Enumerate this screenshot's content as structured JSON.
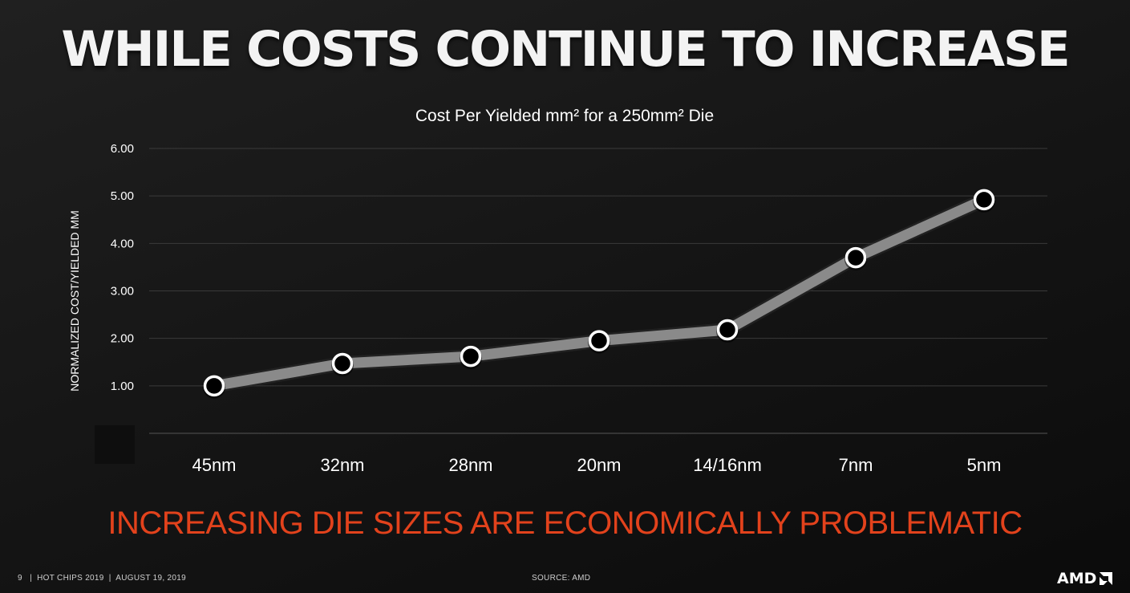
{
  "slide": {
    "title": "WHILE COSTS CONTINUE TO INCREASE",
    "headline": "INCREASING DIE SIZES ARE ECONOMICALLY PROBLEMATIC",
    "headline_color": "#e2421c"
  },
  "footer": {
    "page_info": "9   |  HOT CHIPS 2019  |  AUGUST 19, 2019",
    "source": "SOURCE: AMD",
    "logo_text": "AMD",
    "logo_icon": "amd-arrow-icon"
  },
  "chart_data": {
    "type": "line",
    "title": "Cost Per Yielded mm² for a 250mm² Die",
    "xlabel": "",
    "ylabel": "NORMALIZED COST/YIELDED MM",
    "categories": [
      "45nm",
      "32nm",
      "28nm",
      "20nm",
      "14/16nm",
      "7nm",
      "5nm"
    ],
    "series": [
      {
        "name": "Cost Per Yielded mm²",
        "values": [
          1.0,
          1.47,
          1.62,
          1.95,
          2.18,
          3.7,
          4.92
        ]
      }
    ],
    "ylim": [
      0,
      6
    ],
    "yticks": [
      "6.00",
      "5.00",
      "4.00",
      "3.00",
      "2.00",
      "1.00"
    ],
    "yticks_values": [
      6,
      5,
      4,
      3,
      2,
      1
    ],
    "grid": true,
    "legend": "none",
    "line_color": "#8a8a8a",
    "marker_fill": "#000000",
    "marker_stroke": "#ffffff"
  }
}
